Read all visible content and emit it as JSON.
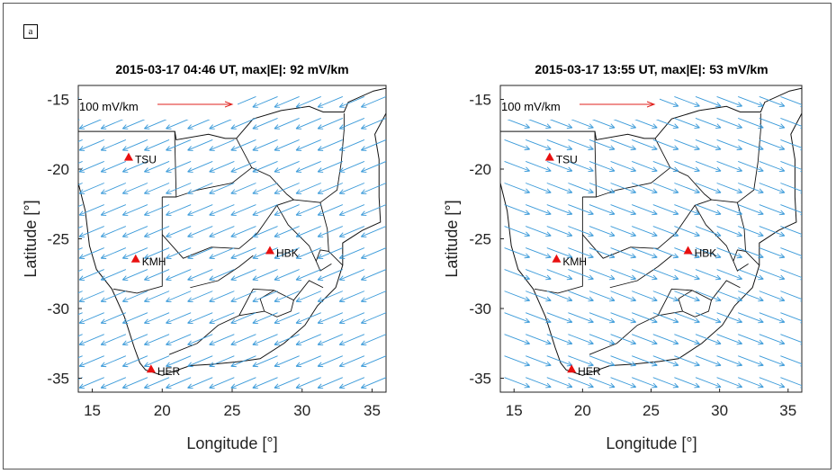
{
  "panel_label": "a",
  "chart_data": [
    {
      "type": "scatter",
      "title": "2015-03-17 04:46 UT, max|E|: 92 mV/km",
      "xlabel": "Longitude [°]",
      "ylabel": "Latitude [°]",
      "xlim": [
        14,
        36
      ],
      "ylim": [
        -36,
        -14
      ],
      "xticks": [
        "15",
        "20",
        "25",
        "30",
        "35"
      ],
      "yticks": [
        "-15",
        "-20",
        "-25",
        "-30",
        "-35"
      ],
      "reference_vector": {
        "label": "100 mV/km",
        "magnitude_mV_per_km": 100,
        "color": "#e0201c"
      },
      "field_vector_color": "#3a9ad9",
      "field_direction": "west-southwest",
      "stations": [
        {
          "name": "TSU",
          "lon": 17.6,
          "lat": -19.2
        },
        {
          "name": "KMH",
          "lon": 18.1,
          "lat": -26.5
        },
        {
          "name": "HBK",
          "lon": 27.7,
          "lat": -25.9
        },
        {
          "name": "HER",
          "lon": 19.2,
          "lat": -34.4
        }
      ]
    },
    {
      "type": "scatter",
      "title": "2015-03-17 13:55 UT, max|E|: 53 mV/km",
      "xlabel": "Longitude [°]",
      "ylabel": "Latitude [°]",
      "xlim": [
        14,
        36
      ],
      "ylim": [
        -36,
        -14
      ],
      "xticks": [
        "15",
        "20",
        "25",
        "30",
        "35"
      ],
      "yticks": [
        "-15",
        "-20",
        "-25",
        "-30",
        "-35"
      ],
      "reference_vector": {
        "label": "100 mV/km",
        "magnitude_mV_per_km": 100,
        "color": "#e0201c"
      },
      "field_vector_color": "#3a9ad9",
      "field_direction": "east-southeast",
      "stations": [
        {
          "name": "TSU",
          "lon": 17.6,
          "lat": -19.2
        },
        {
          "name": "KMH",
          "lon": 18.1,
          "lat": -26.5
        },
        {
          "name": "HBK",
          "lon": 27.7,
          "lat": -25.9
        },
        {
          "name": "HER",
          "lon": 19.2,
          "lat": -34.4
        }
      ]
    }
  ]
}
